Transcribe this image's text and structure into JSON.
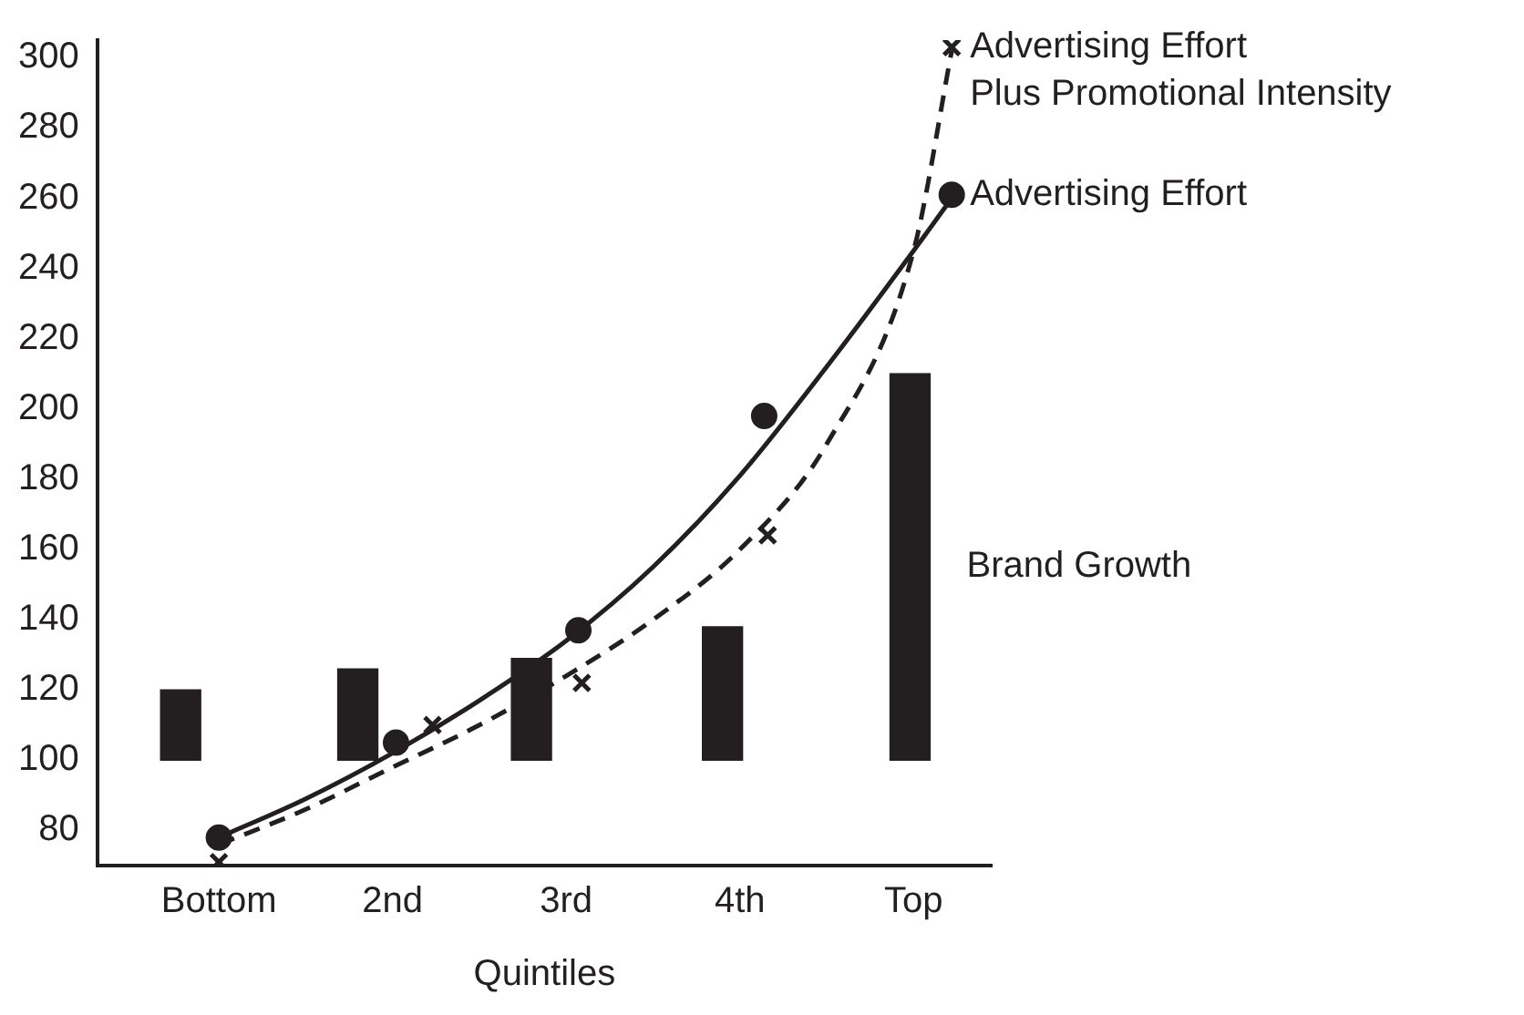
{
  "chart_data": {
    "type": "bar",
    "xlabel": "Quintiles",
    "xlim": [
      0.3,
      5.45
    ],
    "xticks": [
      {
        "value": 1,
        "label": "Bottom"
      },
      {
        "value": 2,
        "label": "2nd"
      },
      {
        "value": 3,
        "label": "3rd"
      },
      {
        "value": 4,
        "label": "4th"
      },
      {
        "value": 5,
        "label": "Top"
      }
    ],
    "ylim": [
      70,
      305
    ],
    "yticks": [
      80,
      100,
      120,
      140,
      160,
      180,
      200,
      220,
      240,
      260,
      280,
      300
    ],
    "grid": false,
    "legend": false,
    "series": [
      {
        "name": "Brand Growth",
        "color": "#231f20",
        "x": [
          0.78,
          1.8,
          2.8,
          3.9,
          4.98
        ],
        "base": [
          100,
          100,
          100,
          100,
          100
        ],
        "values": [
          20,
          26,
          29,
          38,
          110
        ]
      },
      {
        "type": "line",
        "color": "#231f20",
        "marker": "none",
        "line_style": "solid",
        "x": [
          1,
          1.5,
          2,
          2.5,
          3,
          3.5,
          4,
          4.5,
          5,
          5.22
        ],
        "values": [
          78,
          89,
          102,
          117,
          134,
          155,
          181,
          212,
          245,
          260
        ]
      },
      {
        "type": "line",
        "color": "#231f20",
        "marker": "none",
        "line_style": "dashed",
        "x": [
          1,
          1.5,
          2,
          2.5,
          3,
          3.5,
          4,
          4.5,
          5,
          5.22
        ],
        "values": [
          76,
          86,
          98,
          110,
          124,
          140,
          160,
          190,
          245,
          302
        ]
      },
      {
        "name": "Advertising Effort",
        "type": "scatter",
        "color": "#231f20",
        "marker": "circle",
        "x": [
          1,
          2.02,
          3.07,
          4.14,
          5.22
        ],
        "values": [
          78,
          105,
          137,
          198,
          261
        ]
      },
      {
        "name": "Advertising Effort\nPlus Promotional Intensity",
        "type": "scatter",
        "color": "#231f20",
        "marker": "cross",
        "x": [
          1,
          2.23,
          3.09,
          4.16,
          5.22
        ],
        "values": [
          71,
          110,
          122,
          164,
          303
        ]
      }
    ]
  }
}
